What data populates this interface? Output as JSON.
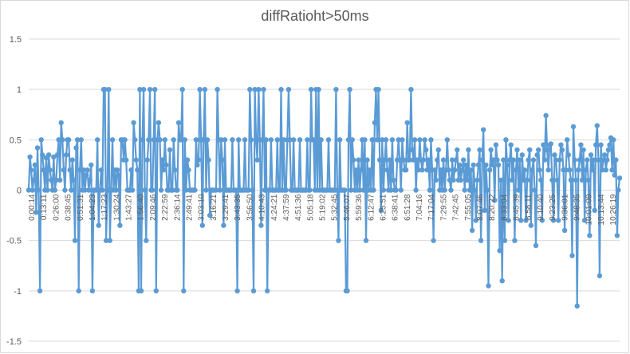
{
  "chart_data": {
    "type": "line",
    "title": "diffRatioht>50ms",
    "xlabel": "",
    "ylabel": "",
    "ylim": [
      -1.5,
      1.5
    ],
    "yticks": [
      "1.5",
      "1",
      "0.5",
      "0",
      "-0.5",
      "-1",
      "-1.5"
    ],
    "grid": "horizontal",
    "legend": "none",
    "color": "#5b9bd5",
    "x_tick_labels": [
      "0:00:14",
      "0:13:11",
      "0:26:00",
      "0:38:45",
      "0:51:31",
      "1:04:23",
      "1:17:23",
      "1:30:24",
      "1:43:27",
      "1:56:40",
      "2:09:46",
      "2:22:59",
      "2:36:14",
      "2:49:41",
      "3:03:10",
      "3:16:21",
      "3:29:41",
      "3:43:35",
      "3:56:50",
      "4:10:43",
      "4:24:21",
      "4:37:59",
      "4:51:36",
      "5:05:18",
      "5:19:02",
      "5:32:45",
      "5:46:07",
      "5:59:36",
      "6:12:47",
      "6:25:51",
      "6:38:41",
      "6:51:28",
      "7:04:16",
      "7:17:04",
      "7:29:55",
      "7:42:45",
      "7:55:05",
      "8:07:46",
      "8:20:22",
      "8:33:04",
      "8:45:39",
      "8:58:11",
      "9:10:40",
      "9:23:25",
      "9:36:01",
      "9:48:35",
      "10:01:09",
      "10:13:44",
      "10:26:19"
    ],
    "values": [
      0,
      0.33,
      0.2,
      0,
      0.1,
      0.25,
      -0.22,
      0.42,
      0,
      -1,
      0.5,
      0.35,
      0.2,
      0,
      0.32,
      0,
      0.35,
      0.2,
      0.1,
      0,
      0.33,
      0,
      0.1,
      0.35,
      0.5,
      0.1,
      0.67,
      0.5,
      0.2,
      0,
      0.35,
      0.5,
      0.5,
      0.2,
      0,
      0.3,
      0.1,
      -0.5,
      0.42,
      0.5,
      -1,
      0.2,
      0.5,
      0,
      0.2,
      0,
      0.15,
      0.2,
      0,
      0.1,
      0.25,
      -1,
      0,
      0,
      0,
      0.5,
      -0.35,
      0,
      0.2,
      0,
      1,
      1,
      -0.5,
      0,
      1,
      -0.5,
      0,
      0.5,
      0,
      0.2,
      0,
      0.2,
      0.15,
      -0.35,
      0.5,
      0.5,
      0.3,
      0.5,
      0.3,
      0,
      0,
      0,
      0.2,
      0,
      0.67,
      0.5,
      0.3,
      0.2,
      -1,
      1,
      -1,
      0.5,
      1,
      0,
      -0.5,
      0.3,
      0.5,
      1,
      0,
      0,
      0.5,
      1,
      -1,
      0.5,
      0.67,
      0.5,
      0,
      0.3,
      0.2,
      0.5,
      0.25,
      0,
      0,
      0.4,
      0,
      0,
      0.5,
      0.2,
      0,
      0,
      0.67,
      0.5,
      0.5,
      1,
      -1,
      0.5,
      0,
      0.3,
      0.2,
      0,
      0,
      0,
      0,
      0,
      0.5,
      0.25,
      0.3,
      1,
      0.5,
      -0.35,
      0.5,
      1,
      0,
      0.5,
      0.3,
      -0.25,
      0,
      0,
      0,
      0,
      0,
      1,
      0.5,
      0,
      0.5,
      0.3,
      -0.35,
      0.5,
      0,
      0,
      0,
      0,
      0,
      0.5,
      0,
      0,
      0,
      -1,
      0.5,
      0,
      0,
      0,
      0,
      0.5,
      0,
      0,
      0,
      1,
      0.5,
      0,
      -1,
      1,
      0.5,
      0.3,
      1,
      0.5,
      -0.35,
      0.5,
      1,
      0,
      0.5,
      -1,
      0,
      0,
      0.5,
      0,
      0,
      0,
      0,
      0.5,
      0,
      0,
      1,
      0,
      0.5,
      0,
      0,
      0.5,
      1,
      0.5,
      0,
      0,
      0.5,
      0,
      0,
      0,
      0,
      0.5,
      0,
      0,
      0,
      0,
      0,
      0.5,
      0,
      0,
      1,
      0.5,
      0.5,
      0,
      1,
      0,
      1,
      0,
      0.5,
      0,
      0,
      0,
      0,
      0,
      0.5,
      0,
      0,
      0,
      0,
      0,
      1,
      0,
      -0.5,
      0.5,
      0,
      0,
      0,
      0,
      -1,
      -1,
      0.5,
      1,
      0,
      0.5,
      0.3,
      0,
      0.2,
      0,
      0.3,
      0,
      0.2,
      0.5,
      0,
      0.5,
      -0.5,
      0.3,
      0,
      0.2,
      0,
      0.5,
      0,
      0.67,
      1,
      0.5,
      1,
      0.3,
      -0.2,
      0.5,
      0,
      0.3,
      0.5,
      0.2,
      0,
      0.3,
      0,
      0.5,
      0.1,
      0,
      0,
      0.3,
      0.5,
      0.3,
      0,
      0.5,
      0.3,
      0.2,
      0.2,
      0.67,
      0.3,
      0.3,
      1,
      0.4,
      0.3,
      0.5,
      0,
      0.3,
      0.2,
      0.5,
      0.3,
      0.2,
      0.3,
      0.5,
      0.4,
      0.2,
      0.3,
      0,
      0.5,
      0.2,
      -0.5,
      0.2,
      0.1,
      0.3,
      0.4,
      0,
      0.2,
      0,
      0.3,
      0,
      0.2,
      0.5,
      0.2,
      0.1,
      0,
      0.3,
      0.1,
      0.2,
      0.3,
      0.4,
      0.1,
      0.25,
      0.1,
      0.2,
      0.3,
      0,
      0.25,
      0.1,
      0.4,
      0,
      0.2,
      -0.4,
      0.25,
      0,
      -0.3,
      0.1,
      0.25,
      0.4,
      -0.5,
      0.3,
      0.6,
      -0.2,
      0.25,
      0,
      -0.95,
      0.2,
      0.4,
      0.25,
      0.3,
      -0.1,
      0.45,
      0.3,
      0.25,
      -0.6,
      0.1,
      -0.9,
      0.3,
      -0.5,
      0.5,
      0.25,
      -0.3,
      0.3,
      0.45,
      0.1,
      0.3,
      -0.5,
      0.2,
      0.4,
      0,
      0.3,
      -0.3,
      0.35,
      0.1,
      0.2,
      -0.3,
      0.1,
      0.3,
      0.4,
      -0.35,
      0.2,
      0.3,
      0,
      -0.55,
      0.35,
      0.4,
      0.2,
      0.1,
      -0.3,
      0.45,
      0.3,
      0.74,
      0.4,
      0.2,
      0.45,
      0.46,
      0.1,
      -0.3,
      0.35,
      0.3,
      0.1,
      -0.3,
      0.3,
      0.45,
      0.4,
      0.2,
      -0.4,
      0.2,
      0.5,
      0.35,
      0.2,
      0.1,
      -0.65,
      0.63,
      0.3,
      0.1,
      -1.15,
      0.2,
      0.3,
      0.45,
      0.1,
      0.4,
      -0.3,
      0.2,
      0.3,
      0.1,
      -0.45,
      0.35,
      0.2,
      0.3,
      -0.2,
      0.45,
      0.64,
      0.3,
      -0.85,
      0.45,
      0.2,
      0.3,
      0.35,
      0.2,
      0.3,
      0.4,
      0.45,
      0.52,
      0.2,
      0.5,
      0.15,
      0.3,
      -0.45,
      0,
      0.12
    ]
  }
}
